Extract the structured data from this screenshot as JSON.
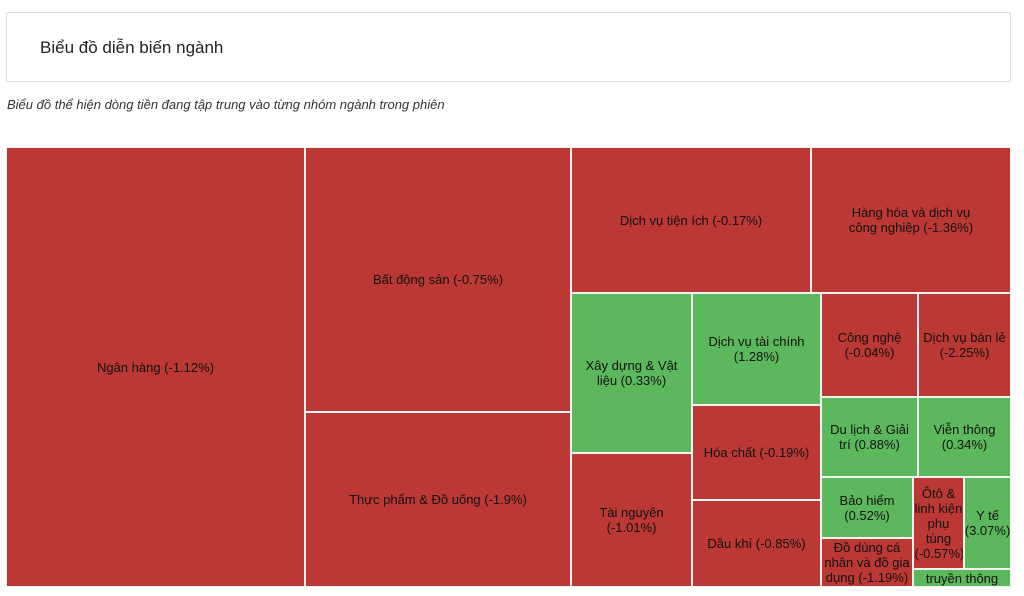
{
  "header": {
    "title": "Biểu đồ diễn biến ngành",
    "subtitle": "Biểu đồ thể hiện dòng tiền đang tập trung vào từng nhóm ngành trong phiên"
  },
  "colors": {
    "negative": "#bb3834",
    "positive": "#5cb85c"
  },
  "chart_data": {
    "type": "treemap",
    "title": "Biểu đồ diễn biến ngành",
    "items": [
      {
        "name": "Ngân hàng",
        "change_pct": -1.12,
        "label": "Ngân hàng (-1.12%)"
      },
      {
        "name": "Bất động sản",
        "change_pct": -0.75,
        "label": "Bất động sản (-0.75%)"
      },
      {
        "name": "Thực phẩm & Đồ uống",
        "change_pct": -1.9,
        "label": "Thực phẩm & Đồ uống (-1.9%)"
      },
      {
        "name": "Dịch vụ tiện ích",
        "change_pct": -0.17,
        "label": "Dịch vụ tiện ích (-0.17%)"
      },
      {
        "name": "Hàng hóa và dịch vụ công nghiệp",
        "change_pct": -1.36,
        "label": "Hàng hóa và dịch vụ công nghiệp (-1.36%)"
      },
      {
        "name": "Xây dựng & Vật liệu",
        "change_pct": 0.33,
        "label": "Xây dựng & Vật liệu (0.33%)"
      },
      {
        "name": "Dịch vụ tài chính",
        "change_pct": 1.28,
        "label": "Dịch vụ tài chính (1.28%)"
      },
      {
        "name": "Công nghệ",
        "change_pct": -0.04,
        "label": "Công nghệ (-0.04%)"
      },
      {
        "name": "Dịch vụ bán lẻ",
        "change_pct": -2.25,
        "label": "Dịch vụ bán lẻ (-2.25%)"
      },
      {
        "name": "Hóa chất",
        "change_pct": -0.19,
        "label": "Hóa chất (-0.19%)"
      },
      {
        "name": "Du lịch & Giải trí",
        "change_pct": 0.88,
        "label": "Du lịch & Giải trí (0.88%)"
      },
      {
        "name": "Viễn thông",
        "change_pct": 0.34,
        "label": "Viễn thông (0.34%)"
      },
      {
        "name": "Tài nguyên",
        "change_pct": -1.01,
        "label": "Tài nguyên (-1.01%)"
      },
      {
        "name": "Bảo hiểm",
        "change_pct": 0.52,
        "label": "Bảo hiểm (0.52%)"
      },
      {
        "name": "Ôtô & linh kiện phụ tùng",
        "change_pct": -0.57,
        "label": "Ôtô & linh kiện phụ tùng (-0.57%)"
      },
      {
        "name": "Y tế",
        "change_pct": 3.07,
        "label": "Y tế (3.07%)"
      },
      {
        "name": "Dầu khí",
        "change_pct": -0.85,
        "label": "Dầu khí (-0.85%)"
      },
      {
        "name": "Đồ dùng cá nhân và đồ gia dụng",
        "change_pct": -1.19,
        "label": "Đồ dùng cá nhân và đồ gia dụng (-1.19%)"
      },
      {
        "name": "Truyền thông",
        "change_pct": null,
        "label": "truyền thông"
      }
    ]
  }
}
